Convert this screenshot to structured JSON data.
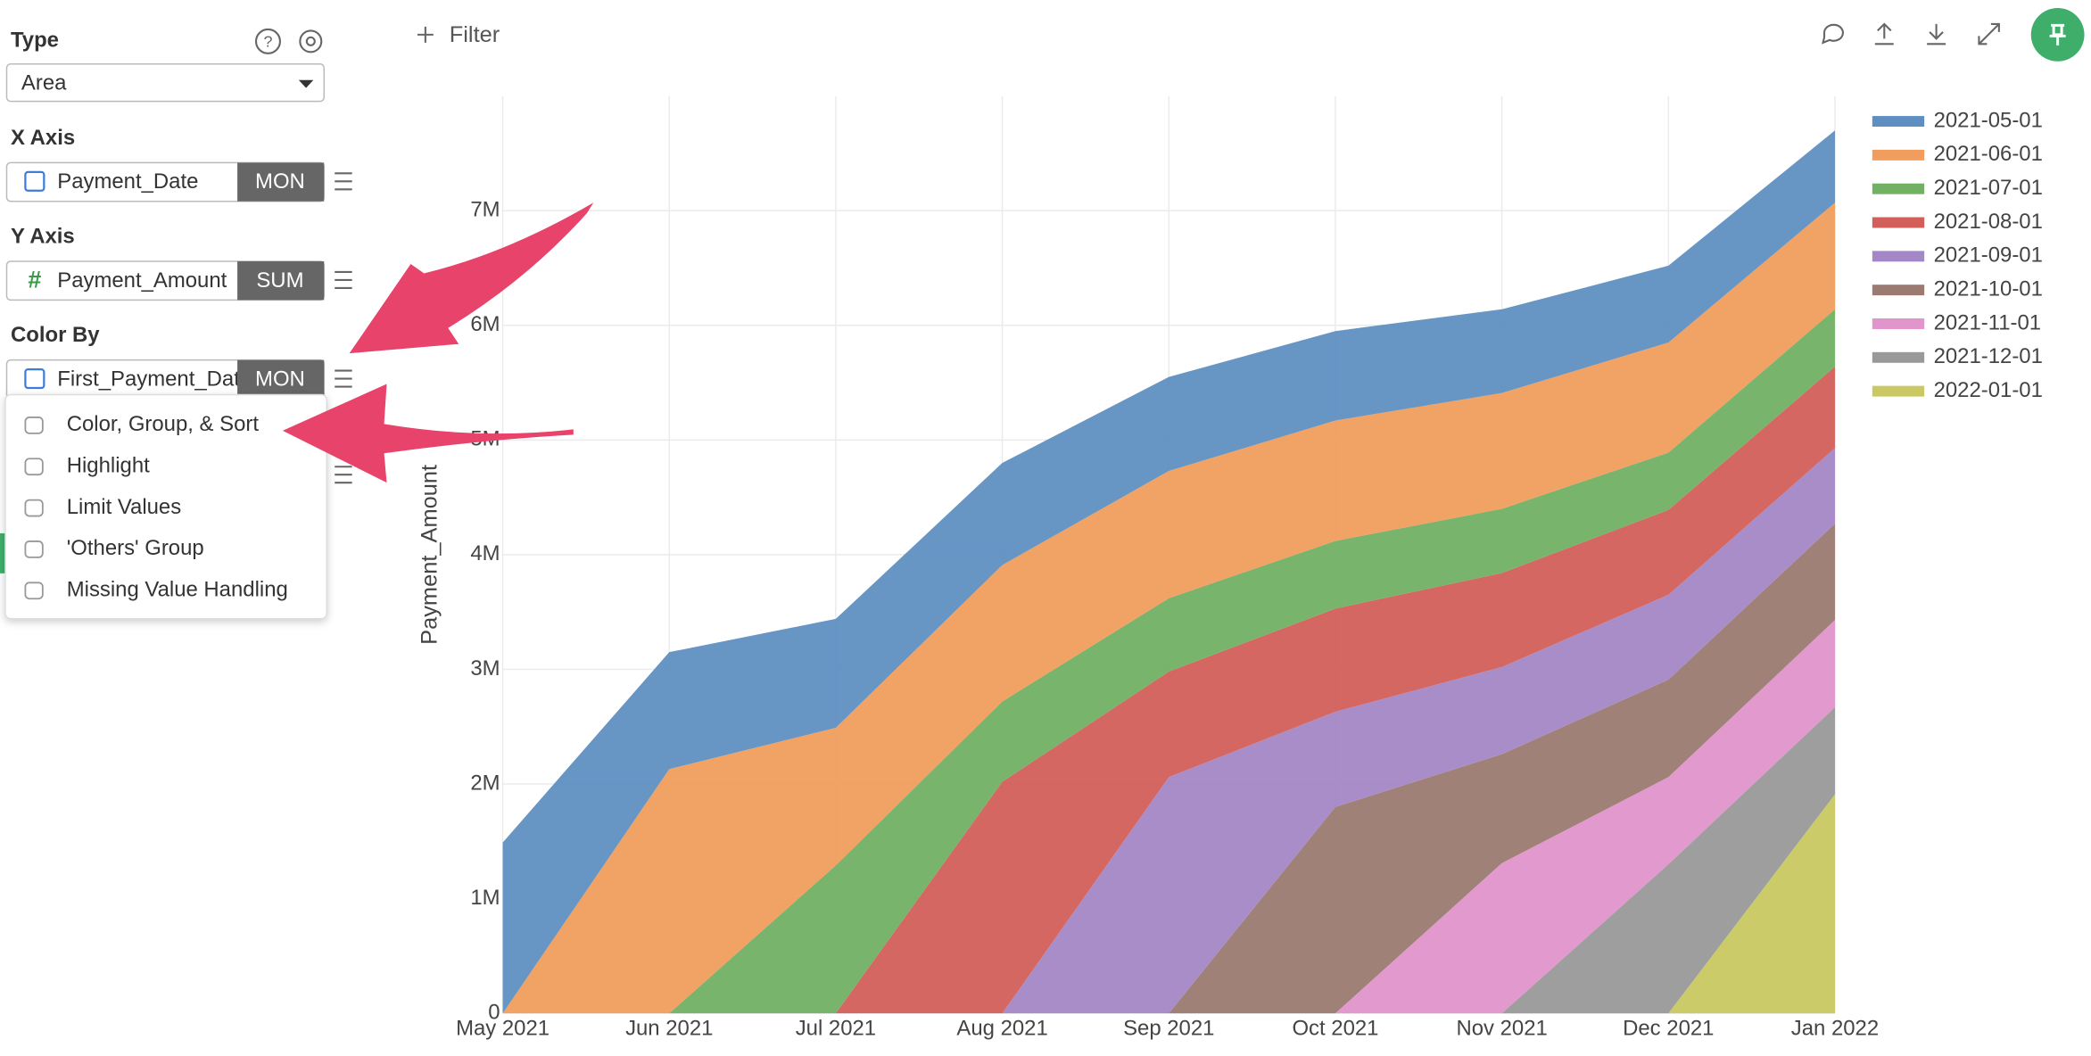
{
  "sidebar": {
    "type": {
      "label": "Type",
      "value": "Area"
    },
    "x_axis": {
      "label": "X Axis",
      "field": "Payment_Date",
      "aggregation": "MON"
    },
    "y_axis": {
      "label": "Y Axis",
      "field": "Payment_Amount",
      "aggregation": "SUM"
    },
    "color_by": {
      "label": "Color By",
      "field": "First_Payment_Dat",
      "aggregation": "MON"
    },
    "menu": [
      "Color, Group, & Sort",
      "Highlight",
      "Limit Values",
      "'Others' Group",
      "Missing Value Handling"
    ]
  },
  "toolbar": {
    "filter": "Filter"
  },
  "chart_data": {
    "type": "area",
    "stacked": true,
    "y_label": "Payment_Amount",
    "legend": "right",
    "grid": true,
    "categories": [
      "May 2021",
      "Jun 2021",
      "Jul 2021",
      "Aug 2021",
      "Sep 2021",
      "Oct 2021",
      "Nov 2021",
      "Dec 2021",
      "Jan 2022"
    ],
    "ylim": [
      0,
      8000000
    ],
    "yticks": [
      0,
      {
        "value": 1000000,
        "label": "1M"
      },
      {
        "value": 2000000,
        "label": "2M"
      },
      {
        "value": 3000000,
        "label": "3M"
      },
      {
        "value": 4000000,
        "label": "4M"
      },
      {
        "value": 5000000,
        "label": "5M"
      },
      {
        "value": 6000000,
        "label": "6M"
      },
      {
        "value": 7000000,
        "label": "7M"
      }
    ],
    "series": [
      {
        "name": "2021-05-01",
        "color": "#5f8fc1",
        "values": [
          1490000,
          1020000,
          950000,
          890000,
          820000,
          780000,
          730000,
          670000,
          630000
        ]
      },
      {
        "name": "2021-06-01",
        "color": "#f09d5d",
        "values": [
          0,
          2130000,
          1200000,
          1190000,
          1110000,
          1050000,
          1010000,
          960000,
          930000
        ]
      },
      {
        "name": "2021-07-01",
        "color": "#72b064",
        "values": [
          0,
          0,
          1290000,
          700000,
          640000,
          590000,
          560000,
          500000,
          500000
        ]
      },
      {
        "name": "2021-08-01",
        "color": "#d35f5a",
        "values": [
          0,
          0,
          0,
          2020000,
          920000,
          900000,
          820000,
          740000,
          710000
        ]
      },
      {
        "name": "2021-09-01",
        "color": "#a487c6",
        "values": [
          0,
          0,
          0,
          0,
          2060000,
          830000,
          760000,
          740000,
          660000
        ]
      },
      {
        "name": "2021-10-01",
        "color": "#9b7a71",
        "values": [
          0,
          0,
          0,
          0,
          0,
          1800000,
          950000,
          850000,
          840000
        ]
      },
      {
        "name": "2021-11-01",
        "color": "#e095cb",
        "values": [
          0,
          0,
          0,
          0,
          0,
          0,
          1310000,
          760000,
          760000
        ]
      },
      {
        "name": "2021-12-01",
        "color": "#999999",
        "values": [
          0,
          0,
          0,
          0,
          0,
          0,
          0,
          1300000,
          760000
        ]
      },
      {
        "name": "2022-01-01",
        "color": "#c9c862",
        "values": [
          0,
          0,
          0,
          0,
          0,
          0,
          0,
          0,
          1910000
        ]
      }
    ]
  }
}
